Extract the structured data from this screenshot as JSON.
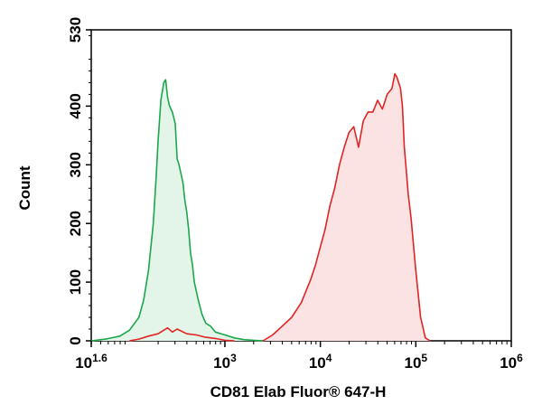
{
  "chart_data": {
    "type": "area",
    "title": "",
    "xlabel": "CD81 Elab Fluor® 647-H",
    "ylabel": "Count",
    "x_scale": "log",
    "xlim": [
      1.6,
      6
    ],
    "ylim": [
      0,
      530
    ],
    "grid": false,
    "x_ticks": [
      {
        "base": "10",
        "exp": "1.6",
        "value": 1.6
      },
      {
        "base": "10",
        "exp": "3",
        "value": 3
      },
      {
        "base": "10",
        "exp": "4",
        "value": 4
      },
      {
        "base": "10",
        "exp": "5",
        "value": 5
      },
      {
        "base": "10",
        "exp": "6",
        "value": 6
      }
    ],
    "y_ticks": [
      "0",
      "100",
      "200",
      "300",
      "400",
      "530"
    ],
    "y_tick_values": [
      0,
      100,
      200,
      300,
      400,
      530
    ],
    "series": [
      {
        "color": "#1aa84a",
        "fill": "#e3f5e8",
        "x": [
          1.6,
          1.75,
          1.9,
          2.0,
          2.1,
          2.15,
          2.2,
          2.25,
          2.28,
          2.3,
          2.33,
          2.36,
          2.38,
          2.4,
          2.42,
          2.45,
          2.48,
          2.5,
          2.52,
          2.54,
          2.56,
          2.58,
          2.6,
          2.62,
          2.64,
          2.66,
          2.68,
          2.72,
          2.76,
          2.8,
          2.85,
          2.9,
          3.0,
          3.1,
          3.2,
          3.3,
          3.4
        ],
        "y": [
          0,
          3,
          8,
          18,
          40,
          70,
          120,
          200,
          280,
          340,
          410,
          440,
          445,
          415,
          400,
          390,
          370,
          310,
          300,
          285,
          270,
          240,
          220,
          190,
          150,
          130,
          100,
          70,
          45,
          30,
          25,
          15,
          10,
          5,
          2,
          1,
          0
        ]
      },
      {
        "color": "#e02424",
        "fill": "#fbe3e3",
        "x": [
          3.4,
          3.5,
          3.6,
          3.7,
          3.8,
          3.85,
          3.9,
          3.95,
          4.0,
          4.05,
          4.1,
          4.15,
          4.2,
          4.25,
          4.3,
          4.35,
          4.4,
          4.45,
          4.5,
          4.55,
          4.6,
          4.65,
          4.7,
          4.75,
          4.78,
          4.8,
          4.82,
          4.84,
          4.86,
          4.88,
          4.9,
          4.92,
          4.95,
          5.0,
          5.05,
          5.1,
          5.15
        ],
        "y": [
          0,
          10,
          25,
          40,
          65,
          85,
          105,
          130,
          160,
          190,
          230,
          260,
          300,
          330,
          355,
          365,
          330,
          375,
          390,
          390,
          410,
          395,
          420,
          430,
          455,
          450,
          440,
          430,
          400,
          330,
          290,
          250,
          210,
          120,
          40,
          5,
          0
        ]
      },
      {
        "color": "#e02424",
        "fill": "none",
        "x": [
          2.0,
          2.1,
          2.2,
          2.3,
          2.4,
          2.45,
          2.5,
          2.6,
          2.7,
          2.8,
          2.9,
          3.0,
          3.1
        ],
        "y": [
          0,
          3,
          8,
          12,
          22,
          15,
          20,
          12,
          10,
          6,
          4,
          1,
          0
        ]
      }
    ]
  }
}
